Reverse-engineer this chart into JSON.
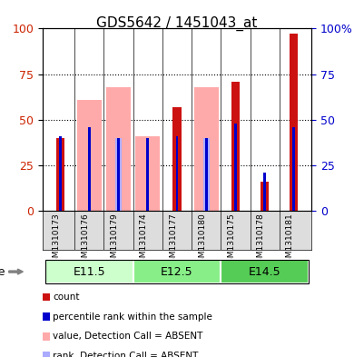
{
  "title": "GDS5642 / 1451043_at",
  "samples": [
    "GSM1310173",
    "GSM1310176",
    "GSM1310179",
    "GSM1310174",
    "GSM1310177",
    "GSM1310180",
    "GSM1310175",
    "GSM1310178",
    "GSM1310181"
  ],
  "age_groups": [
    {
      "label": "E11.5",
      "samples": [
        0,
        1,
        2
      ]
    },
    {
      "label": "E12.5",
      "samples": [
        3,
        4,
        5
      ]
    },
    {
      "label": "E14.5",
      "samples": [
        6,
        7,
        8
      ]
    }
  ],
  "age_colors": [
    "#ccffcc",
    "#88ee88",
    "#55cc55"
  ],
  "count_values": [
    40,
    0,
    0,
    0,
    57,
    0,
    71,
    16,
    97
  ],
  "percentile_rank": [
    41,
    46,
    40,
    40,
    41,
    40,
    48,
    21,
    46
  ],
  "absent_value": [
    0,
    61,
    68,
    41,
    0,
    68,
    0,
    0,
    0
  ],
  "absent_rank": [
    0,
    0,
    40,
    0,
    0,
    40,
    0,
    0,
    0
  ],
  "ylim": [
    0,
    100
  ],
  "left_color": "#cc1111",
  "right_color": "#0000cc",
  "absent_value_color": "#ffaaaa",
  "absent_rank_color": "#aaaaff",
  "tick_label_color_left": "#cc2200",
  "tick_label_color_right": "#0000cc",
  "legend_items": [
    {
      "label": "count",
      "color": "#cc1111"
    },
    {
      "label": "percentile rank within the sample",
      "color": "#0000cc"
    },
    {
      "label": "value, Detection Call = ABSENT",
      "color": "#ffaaaa"
    },
    {
      "label": "rank, Detection Call = ABSENT",
      "color": "#aaaaff"
    }
  ]
}
